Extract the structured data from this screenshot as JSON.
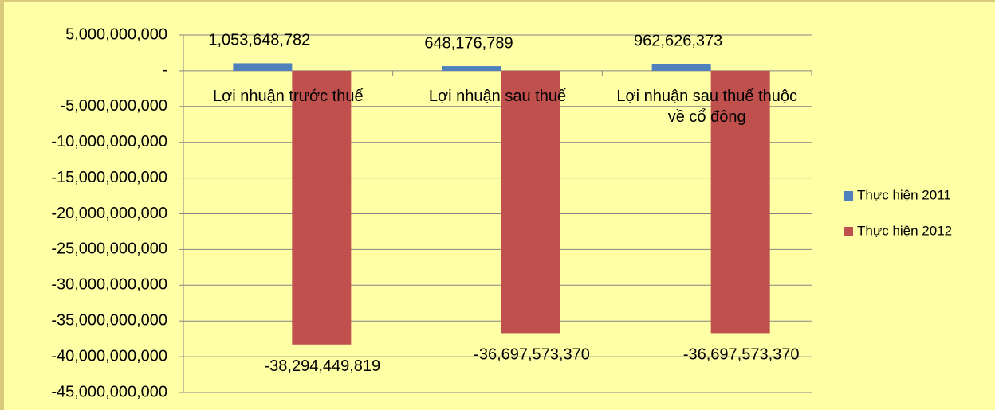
{
  "chart_data": {
    "type": "bar",
    "categories": [
      "Lợi nhuận trước thuế",
      "Lợi nhuận sau thuế",
      "Lợi nhuận sau thuế thuộc về cổ đông"
    ],
    "series": [
      {
        "name": "Thực hiện 2011",
        "color": "#4f81bd",
        "values": [
          1053648782,
          648176789,
          962626373
        ],
        "value_labels": [
          "1,053,648,782",
          "648,176,789",
          "962,626,373"
        ]
      },
      {
        "name": "Thực hiện 2012",
        "color": "#c0504d",
        "values": [
          -38294449819,
          -36697573370,
          -36697573370
        ],
        "value_labels": [
          "-38,294,449,819",
          "-36,697,573,370",
          "-36,697,573,370"
        ]
      }
    ],
    "ylim": [
      -45000000000,
      5000000000
    ],
    "yticks": [
      {
        "value": 5000000000,
        "label": "5,000,000,000"
      },
      {
        "value": 0,
        "label": "-"
      },
      {
        "value": -5000000000,
        "label": "-5,000,000,000"
      },
      {
        "value": -10000000000,
        "label": "-10,000,000,000"
      },
      {
        "value": -15000000000,
        "label": "-15,000,000,000"
      },
      {
        "value": -20000000000,
        "label": "-20,000,000,000"
      },
      {
        "value": -25000000000,
        "label": "-25,000,000,000"
      },
      {
        "value": -30000000000,
        "label": "-30,000,000,000"
      },
      {
        "value": -35000000000,
        "label": "-35,000,000,000"
      },
      {
        "value": -40000000000,
        "label": "-40,000,000,000"
      },
      {
        "value": -45000000000,
        "label": "-45,000,000,000"
      }
    ],
    "grid": true,
    "legend": "right"
  }
}
